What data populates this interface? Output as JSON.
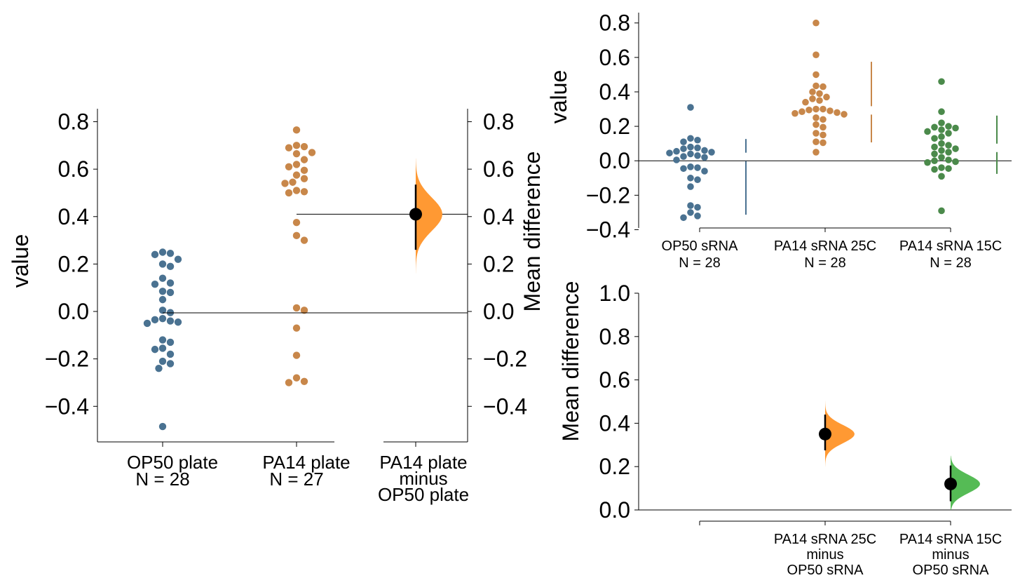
{
  "colors": {
    "op50": "#4a7291",
    "pa14_25": "#c8874a",
    "pa14_15": "#4b8a4b",
    "diff_orange": "#ff9933",
    "diff_green": "#55bb55",
    "axis": "#000000"
  },
  "chart_data": [
    {
      "type": "scatter",
      "subtype": "estimation-plot",
      "ylabel": "value",
      "y2label": "Mean difference",
      "ylim": [
        -0.55,
        0.84
      ],
      "yticks": [
        "0.8",
        "0.6",
        "0.4",
        "0.2",
        "0.0",
        "−0.2",
        "−0.4"
      ],
      "ytick_values": [
        0.8,
        0.6,
        0.4,
        0.2,
        0.0,
        -0.2,
        -0.4
      ],
      "y2ticks": [
        "0.8",
        "0.6",
        "0.4",
        "0.2",
        "0.0",
        "−0.2",
        "−0.4"
      ],
      "y2tick_values": [
        0.8,
        0.6,
        0.4,
        0.2,
        0.0,
        -0.2,
        -0.4
      ],
      "groups": [
        {
          "name": "OP50 plate",
          "n_label": "N = 28",
          "color": "op50",
          "values": [
            0.25,
            0.245,
            0.24,
            0.22,
            0.2,
            0.19,
            0.14,
            0.12,
            0.115,
            0.085,
            0.08,
            0.05,
            0.005,
            -0.005,
            -0.03,
            -0.035,
            -0.04,
            -0.045,
            -0.05,
            -0.12,
            -0.13,
            -0.155,
            -0.16,
            -0.18,
            -0.21,
            -0.22,
            -0.24,
            -0.485
          ]
        },
        {
          "name": "PA14 plate",
          "n_label": "N = 27",
          "color": "pa14_25",
          "values": [
            0.765,
            0.7,
            0.695,
            0.69,
            0.67,
            0.665,
            0.64,
            0.62,
            0.61,
            0.595,
            0.575,
            0.56,
            0.545,
            0.54,
            0.51,
            0.505,
            0.5,
            0.375,
            0.32,
            0.3,
            0.015,
            0.005,
            -0.07,
            -0.185,
            -0.28,
            -0.295,
            -0.3
          ]
        }
      ],
      "contrast": {
        "label_lines": [
          "PA14 plate",
          "minus",
          "OP50 plate"
        ],
        "mean_diff": 0.41,
        "ci": [
          0.26,
          0.535
        ],
        "tails": [
          0.16,
          0.645
        ],
        "color": "diff_orange"
      }
    },
    {
      "type": "scatter",
      "subtype": "estimation-plot",
      "ylabel": "value",
      "ylim": [
        -0.39,
        0.86
      ],
      "yticks": [
        "0.8",
        "0.6",
        "0.4",
        "0.2",
        "0.0",
        "−0.2",
        "−0.4"
      ],
      "ytick_values": [
        0.8,
        0.6,
        0.4,
        0.2,
        0.0,
        -0.2,
        -0.4
      ],
      "groups": [
        {
          "name": "OP50 sRNA",
          "n_label": "N = 28",
          "color": "op50",
          "values": [
            0.31,
            0.13,
            0.12,
            0.11,
            0.08,
            0.075,
            0.07,
            0.06,
            0.055,
            0.05,
            0.045,
            0.04,
            0.03,
            0.025,
            0.02,
            0.005,
            -0.035,
            -0.04,
            -0.045,
            -0.06,
            -0.1,
            -0.11,
            -0.15,
            -0.26,
            -0.27,
            -0.3,
            -0.32,
            -0.33
          ]
        },
        {
          "name": "PA14 sRNA 25C",
          "n_label": "N = 28",
          "color": "pa14_25",
          "values": [
            0.8,
            0.615,
            0.5,
            0.435,
            0.43,
            0.4,
            0.39,
            0.37,
            0.36,
            0.35,
            0.34,
            0.3,
            0.3,
            0.295,
            0.29,
            0.285,
            0.28,
            0.275,
            0.27,
            0.25,
            0.24,
            0.21,
            0.195,
            0.16,
            0.15,
            0.11,
            0.105,
            0.05
          ]
        },
        {
          "name": "PA14 sRNA 15C",
          "n_label": "N = 28",
          "color": "pa14_15",
          "values": [
            0.46,
            0.285,
            0.22,
            0.2,
            0.195,
            0.19,
            0.18,
            0.17,
            0.16,
            0.14,
            0.13,
            0.1,
            0.09,
            0.08,
            0.07,
            0.06,
            0.05,
            0.04,
            0.02,
            0.005,
            0.0,
            -0.005,
            -0.01,
            -0.04,
            -0.045,
            -0.05,
            -0.09,
            -0.29
          ]
        }
      ]
    },
    {
      "type": "scatter",
      "subtype": "contrast-plot",
      "ylabel": "Mean difference",
      "ylim": [
        0.0,
        1.0
      ],
      "yticks": [
        "1.0",
        "0.8",
        "0.6",
        "0.4",
        "0.2",
        "0.0"
      ],
      "ytick_values": [
        1.0,
        0.8,
        0.6,
        0.4,
        0.2,
        0.0
      ],
      "contrasts": [
        {
          "label_lines": [
            "PA14 sRNA 25C",
            "minus",
            "OP50 sRNA"
          ],
          "mean_diff": 0.35,
          "ci": [
            0.275,
            0.44
          ],
          "tails": [
            0.2,
            0.505
          ],
          "color": "diff_orange"
        },
        {
          "label_lines": [
            "PA14 sRNA 15C",
            "minus",
            "OP50 sRNA"
          ],
          "mean_diff": 0.12,
          "ci": [
            0.04,
            0.205
          ],
          "tails": [
            0.0,
            0.25
          ],
          "color": "diff_green"
        }
      ]
    }
  ]
}
